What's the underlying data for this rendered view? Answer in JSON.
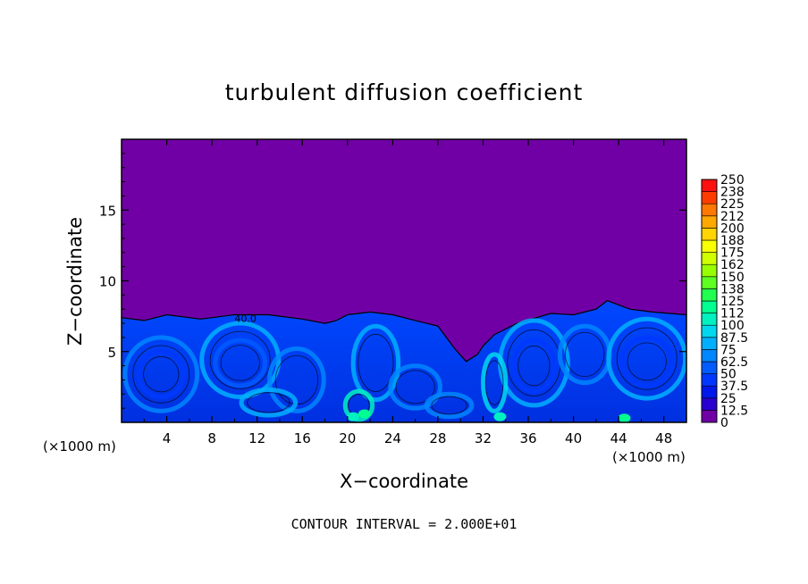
{
  "chart_data": {
    "type": "heatmap",
    "title": "turbulent diffusion coefficient",
    "xlabel": "X−coordinate",
    "ylabel": "Z−coordinate",
    "x_unit": "(×1000 m)",
    "y_unit": "(×1000 m)",
    "xlim": [
      0,
      50
    ],
    "ylim": [
      0,
      20
    ],
    "xticks": [
      "4",
      "8",
      "12",
      "16",
      "20",
      "24",
      "28",
      "32",
      "36",
      "40",
      "44",
      "48"
    ],
    "yticks": [
      "5",
      "10",
      "15"
    ],
    "footer": "CONTOUR INTERVAL = 2.000E+01",
    "contour_label": "40.0",
    "background_color": "#7000a6",
    "colorbar": {
      "labels": [
        "0",
        "12.5",
        "25",
        "37.5",
        "50",
        "62.5",
        "75",
        "87.5",
        "100",
        "112",
        "125",
        "138",
        "150",
        "162",
        "175",
        "188",
        "200",
        "212",
        "225",
        "238",
        "250"
      ],
      "colors": [
        "#7000a6",
        "#2a00d0",
        "#0018ea",
        "#0038ff",
        "#005cff",
        "#0086ff",
        "#00b0ff",
        "#00d8ee",
        "#00f0c0",
        "#00ff90",
        "#20ff50",
        "#5cff20",
        "#98ff00",
        "#d0ff00",
        "#f8ff00",
        "#ffd400",
        "#ffa800",
        "#ff7800",
        "#ff3c00",
        "#ff1010",
        "#ff7a7a"
      ]
    },
    "top_envelope": [
      [
        0,
        7.4
      ],
      [
        2,
        7.2
      ],
      [
        4,
        7.6
      ],
      [
        7,
        7.3
      ],
      [
        10,
        7.6
      ],
      [
        13,
        7.6
      ],
      [
        16,
        7.3
      ],
      [
        18,
        7.0
      ],
      [
        19,
        7.2
      ],
      [
        20,
        7.6
      ],
      [
        22,
        7.8
      ],
      [
        24,
        7.6
      ],
      [
        26,
        7.2
      ],
      [
        28,
        6.8
      ],
      [
        29.5,
        5.2
      ],
      [
        30.5,
        4.3
      ],
      [
        31.5,
        4.8
      ],
      [
        32,
        5.4
      ],
      [
        33,
        6.2
      ],
      [
        35,
        7.0
      ],
      [
        38,
        7.7
      ],
      [
        40,
        7.6
      ],
      [
        42,
        8.0
      ],
      [
        43,
        8.6
      ],
      [
        45,
        8.0
      ],
      [
        47,
        7.8
      ],
      [
        50,
        7.6
      ]
    ]
  }
}
